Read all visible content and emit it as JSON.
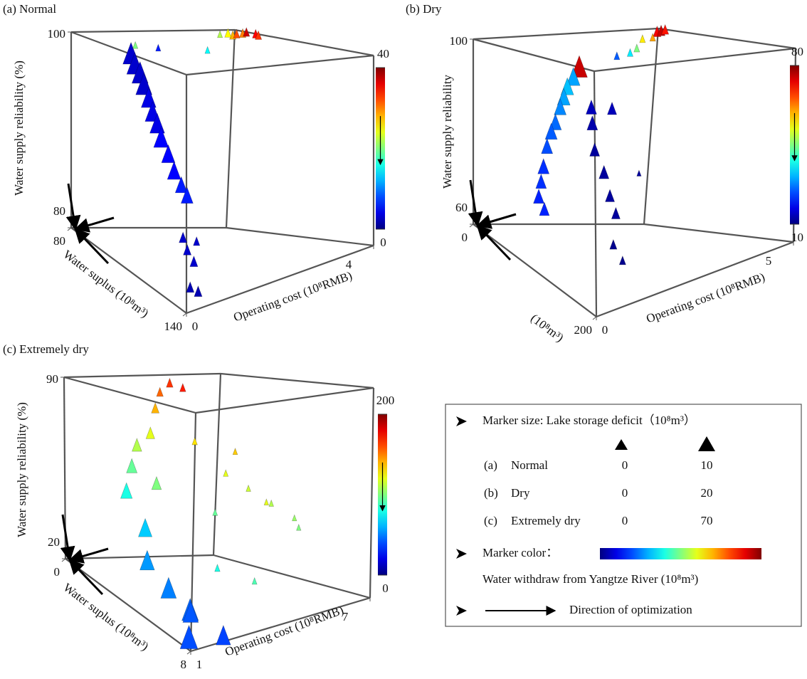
{
  "chart_data": [
    {
      "type": "scatter3d",
      "title": "(a) Normal",
      "xlabel": "Operating cost (10⁸RMB)",
      "ylabel": "Water suplus (10⁸m³)",
      "zlabel": "Water supply reliability (%)",
      "xlim": [
        0,
        4
      ],
      "xticks": [
        0,
        4
      ],
      "ylim": [
        80,
        140
      ],
      "yticks": [
        80,
        140
      ],
      "zlim": [
        80,
        100
      ],
      "zticks": [
        80,
        100
      ],
      "colormap": "jet",
      "clim": [
        0,
        40
      ],
      "cticks": [
        0,
        40
      ],
      "x": [
        0.05,
        0.05,
        0.08,
        0.08,
        0.1,
        0.1,
        0.12,
        0.12,
        0.15,
        0.15,
        0.18,
        0.2,
        0.05,
        0.1,
        0.2,
        0.1,
        0.3,
        0.25,
        0.6,
        0.9,
        1.7,
        3.4,
        3.6,
        3.8,
        4,
        3.5,
        3.9,
        3.2,
        4
      ],
      "y": [
        110,
        112,
        114,
        116,
        118,
        120,
        122,
        124,
        127,
        130,
        133,
        135.5,
        137,
        138,
        139,
        139.5,
        138,
        140,
        100,
        105,
        112,
        90,
        88,
        87,
        89,
        86,
        92,
        88,
        85
      ],
      "z": [
        100,
        99.2,
        98.5,
        97.6,
        96.5,
        95.4,
        94.5,
        93.4,
        92.2,
        91,
        90,
        89.3,
        86,
        85,
        84,
        82,
        85.5,
        81.5,
        100,
        100,
        100,
        100,
        100,
        100,
        100,
        100,
        100,
        100,
        100
      ],
      "color_values": [
        3,
        3,
        3,
        3,
        4,
        4,
        4,
        5,
        5,
        5,
        6,
        6,
        3,
        3,
        3,
        2,
        3,
        2,
        20,
        6,
        15,
        28,
        32,
        30,
        35,
        25,
        33,
        22,
        37
      ],
      "size_values": [
        9,
        9,
        9,
        9,
        8,
        8,
        8,
        8,
        7,
        7,
        6,
        6,
        3,
        3,
        3,
        3,
        2,
        3,
        1,
        1,
        1,
        2,
        2,
        2,
        2,
        2,
        2,
        1,
        2
      ]
    },
    {
      "type": "scatter3d",
      "title": "(b) Dry",
      "xlabel": "Operating cost (10⁸RMB)",
      "ylabel": "(10⁸m³)",
      "zlabel": "Water supply reliability",
      "xlim": [
        0,
        5
      ],
      "xticks": [
        0,
        5
      ],
      "ylim": [
        0,
        200
      ],
      "yticks": [
        0,
        200
      ],
      "zlim": [
        60,
        100
      ],
      "zticks": [
        60,
        100
      ],
      "colormap": "jet",
      "clim": [
        10,
        80
      ],
      "cticks": [
        10,
        80
      ],
      "x": [
        0.05,
        0.05,
        0.05,
        0.05,
        0.05,
        0.05,
        0.05,
        0.05,
        0.05,
        0.05,
        0.05,
        0.1,
        0.3,
        0.4,
        0.3,
        0.5,
        0.6,
        0.7,
        0.9,
        0.6,
        0.8,
        1.5,
        2,
        2.5,
        3.5,
        4.6,
        4.8,
        5,
        4.4,
        1.5
      ],
      "y": [
        172,
        162,
        152,
        146,
        140,
        132,
        125,
        118,
        112,
        108,
        104,
        110,
        175,
        170,
        180,
        182,
        185,
        188,
        170,
        190,
        192,
        140,
        130,
        110,
        60,
        20,
        15,
        10,
        25,
        175
      ],
      "z": [
        100,
        98,
        96,
        94,
        92,
        89,
        87,
        84,
        80,
        77,
        74,
        72,
        93,
        90,
        86,
        82,
        78,
        75,
        92,
        70,
        67,
        100,
        100,
        100,
        100,
        100,
        100,
        100,
        99,
        80
      ],
      "color_values": [
        75,
        30,
        32,
        30,
        28,
        26,
        25,
        24,
        22,
        22,
        21,
        21,
        14,
        13,
        12,
        12,
        12,
        12,
        14,
        11,
        11,
        25,
        35,
        45,
        55,
        72,
        75,
        70,
        60,
        12
      ],
      "size_values": [
        18,
        14,
        13,
        13,
        12,
        12,
        12,
        11,
        11,
        10,
        10,
        9,
        10,
        10,
        9,
        9,
        8,
        7,
        8,
        5,
        4,
        3,
        3,
        3,
        3,
        6,
        6,
        5,
        3,
        1
      ]
    },
    {
      "type": "scatter3d",
      "title": "(c) Extremely dry",
      "xlabel": "Operating cost (10⁸RMB)",
      "ylabel": "Water suplus (10⁸m³)",
      "zlabel": "Water supply reliability  (%)",
      "xlim": [
        1,
        7
      ],
      "xticks": [
        1,
        7
      ],
      "ylim": [
        0,
        8
      ],
      "yticks": [
        0,
        8
      ],
      "zlim": [
        20,
        90
      ],
      "zticks": [
        20,
        90
      ],
      "colormap": "jet",
      "clim": [
        0,
        200
      ],
      "cticks": [
        0,
        200
      ],
      "x": [
        1.2,
        1.5,
        1.3,
        1.1,
        1.8,
        2.2,
        1.6,
        1.5,
        2,
        2.5,
        2.3,
        3,
        3.5,
        4,
        4.5,
        5,
        4,
        4.5,
        5,
        5.5,
        6,
        6.5,
        3.5,
        5.5,
        6,
        3,
        4
      ],
      "y": [
        7.5,
        7,
        6,
        5,
        6.5,
        7.8,
        4,
        3,
        2.5,
        2,
        3.5,
        2,
        1.5,
        1,
        0.8,
        0.8,
        3,
        4,
        4.5,
        5,
        5.5,
        5,
        5,
        3,
        4,
        6,
        6.5
      ],
      "z": [
        22,
        28,
        32,
        38,
        25,
        21,
        45,
        55,
        62,
        68,
        58,
        72,
        80,
        85,
        88,
        86,
        70,
        60,
        55,
        50,
        45,
        40,
        50,
        65,
        48,
        35,
        30
      ],
      "color_values": [
        40,
        45,
        50,
        55,
        42,
        38,
        65,
        80,
        95,
        110,
        100,
        120,
        140,
        155,
        165,
        170,
        130,
        120,
        115,
        110,
        105,
        100,
        95,
        135,
        120,
        80,
        90
      ],
      "size_values": [
        70,
        65,
        60,
        55,
        60,
        55,
        50,
        40,
        35,
        30,
        30,
        25,
        20,
        15,
        15,
        12,
        8,
        6,
        5,
        5,
        4,
        4,
        6,
        5,
        4,
        8,
        6
      ]
    }
  ],
  "legend": {
    "size_title": "Marker size: Lake storage deficit（10⁸m³）",
    "rows": [
      {
        "label": "(a)",
        "name": "Normal",
        "min": 0,
        "max": 10
      },
      {
        "label": "(b)",
        "name": "Dry",
        "min": 0,
        "max": 20
      },
      {
        "label": "(c)",
        "name": "Extremely dry",
        "min": 0,
        "max": 70
      }
    ],
    "color_title": "Marker color：",
    "color_caption": "Water withdraw from Yangtze River (10⁸m³)",
    "direction": "Direction of optimization"
  }
}
